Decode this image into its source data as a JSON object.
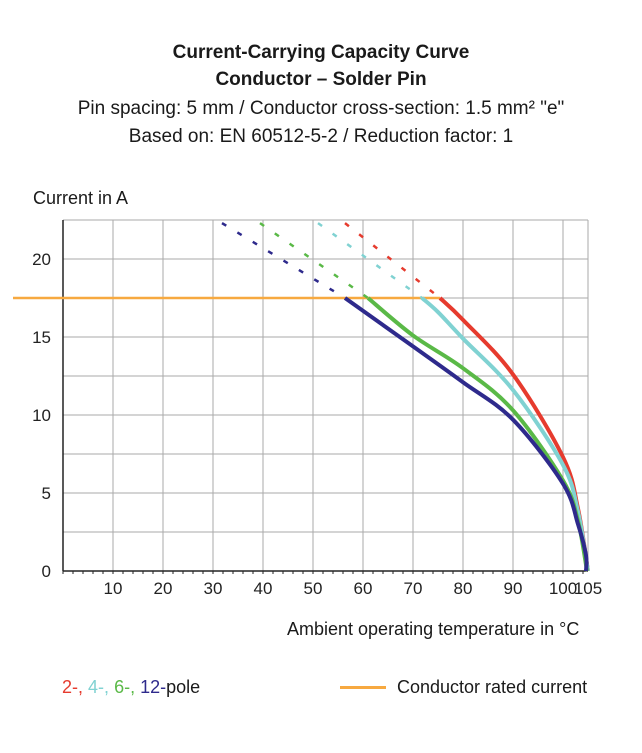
{
  "chart_data": {
    "type": "line",
    "title": "Current-Carrying Capacity Curve",
    "subtitle": "Conductor – Solder Pin",
    "info_lines": [
      "Pin spacing: 5 mm / Conductor cross-section: 1.5 mm² \"e\"",
      "Based on: EN 60512-5-2 / Reduction factor: 1"
    ],
    "xlabel": "Ambient operating temperature in °C",
    "ylabel": "Current in A",
    "xlim": [
      0,
      105
    ],
    "ylim": [
      0,
      22.5
    ],
    "xticks": [
      10,
      20,
      30,
      40,
      50,
      60,
      70,
      80,
      90,
      100,
      105
    ],
    "yticks": [
      0,
      5,
      10,
      15,
      20
    ],
    "grid": true,
    "rated_current": {
      "name": "Conductor rated current",
      "value": 17.5,
      "color": "#f7a940"
    },
    "legend_pole_labels": [
      "2-,",
      "4-,",
      "6-,",
      "12-",
      "pole"
    ],
    "series": [
      {
        "name": "2-pole",
        "color": "#e63b2e",
        "solid": [
          [
            75.4,
            17.5
          ],
          [
            80,
            16.1
          ],
          [
            90,
            12.6
          ],
          [
            100,
            7.3
          ],
          [
            103,
            4
          ],
          [
            105,
            0
          ]
        ],
        "dashed": [
          [
            56.4,
            22.3
          ],
          [
            75.4,
            17.5
          ]
        ]
      },
      {
        "name": "4-pole",
        "color": "#80d2d2",
        "solid": [
          [
            71.8,
            17.5
          ],
          [
            75,
            16.6
          ],
          [
            80,
            14.9
          ],
          [
            90,
            11.6
          ],
          [
            100,
            6.8
          ],
          [
            103,
            3.8
          ],
          [
            105,
            0
          ]
        ],
        "dashed": [
          [
            51,
            22.3
          ],
          [
            71.8,
            17.5
          ]
        ]
      },
      {
        "name": "6-pole",
        "color": "#5ab947",
        "solid": [
          [
            61,
            17.5
          ],
          [
            70,
            15.1
          ],
          [
            80,
            13.0
          ],
          [
            90,
            10.3
          ],
          [
            100,
            5.8
          ],
          [
            103,
            3.2
          ],
          [
            104.8,
            0
          ]
        ],
        "dashed": [
          [
            39.4,
            22.3
          ],
          [
            61,
            17.5
          ]
        ]
      },
      {
        "name": "12-pole",
        "color": "#2e2a8c",
        "solid": [
          [
            56.4,
            17.5
          ],
          [
            70,
            14.4
          ],
          [
            80,
            12.1
          ],
          [
            90,
            9.7
          ],
          [
            100,
            5.6
          ],
          [
            103,
            3
          ],
          [
            104.6,
            1
          ],
          [
            104.6,
            0
          ]
        ],
        "dashed": [
          [
            31.8,
            22.3
          ],
          [
            56.4,
            17.5
          ]
        ]
      }
    ]
  }
}
